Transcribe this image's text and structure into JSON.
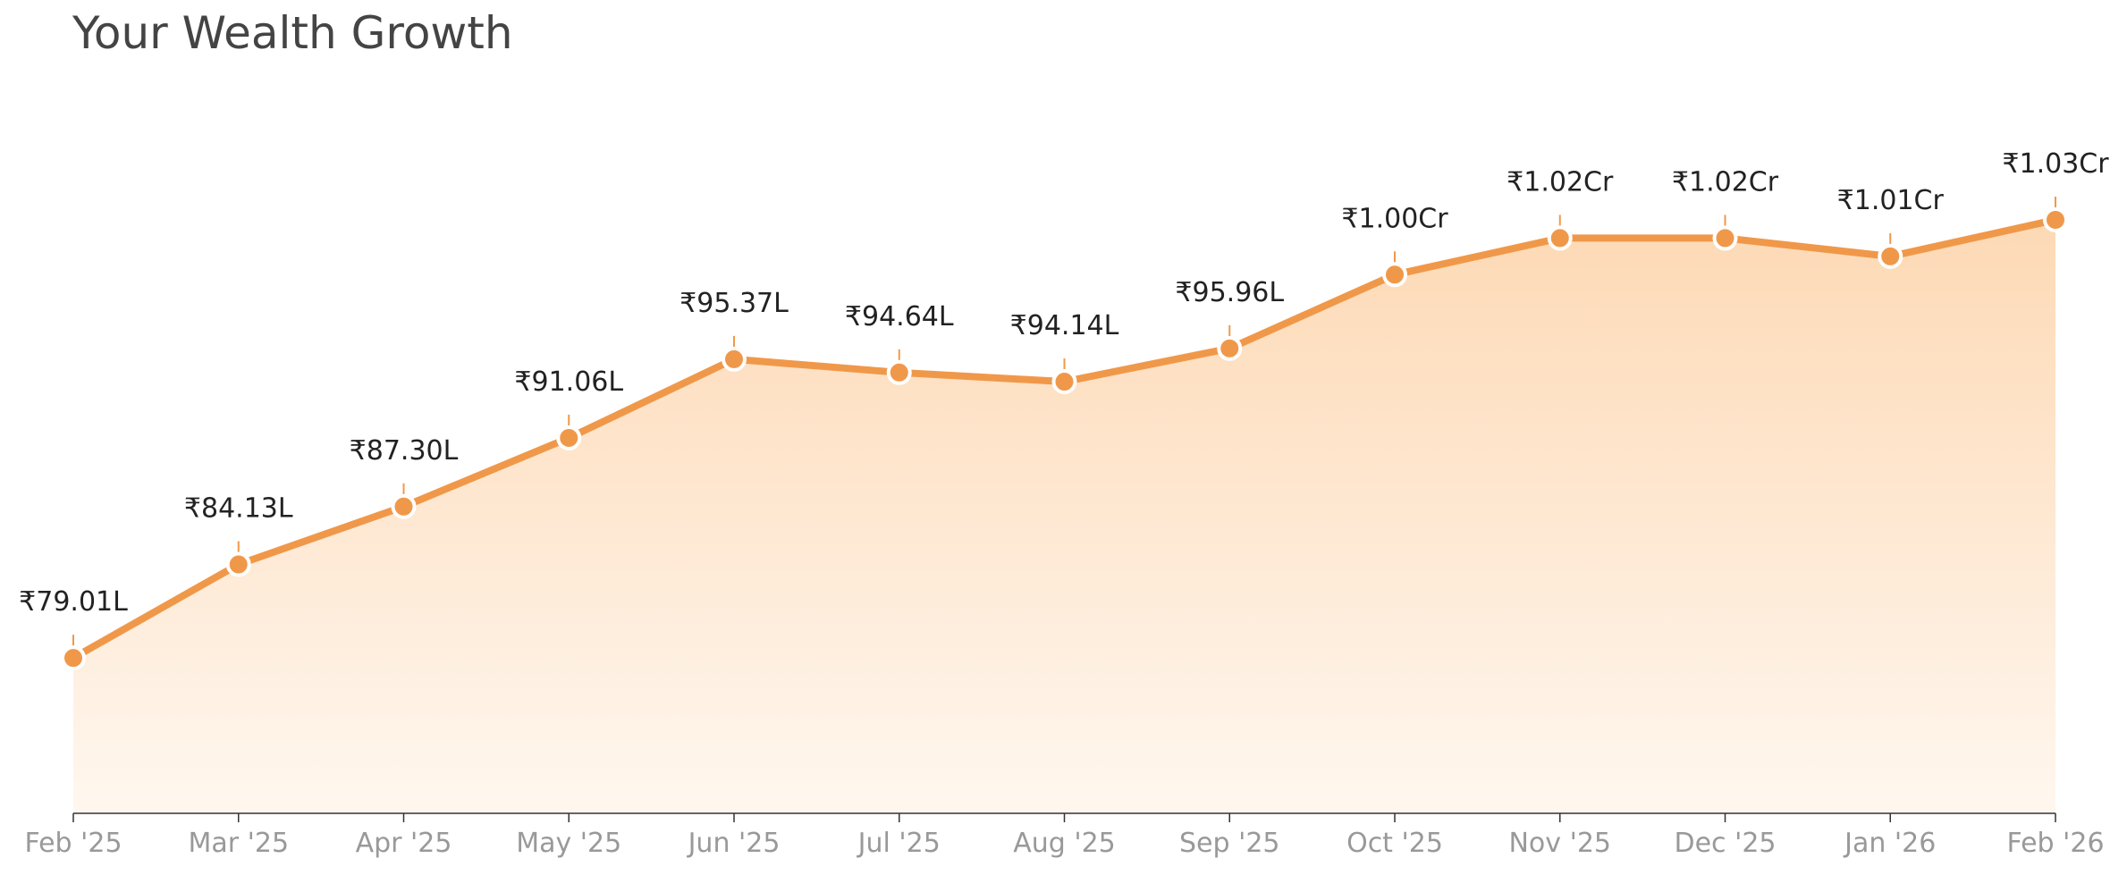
{
  "chart_data": {
    "type": "area",
    "title": "Your Wealth Growth",
    "xlabel": "",
    "ylabel": "",
    "unit": "Lakh INR",
    "categories": [
      "Feb '25",
      "Mar '25",
      "Apr '25",
      "May '25",
      "Jun '25",
      "Jul '25",
      "Aug '25",
      "Sep '25",
      "Oct '25",
      "Nov '25",
      "Dec '25",
      "Jan '26",
      "Feb '26"
    ],
    "values": [
      79.01,
      84.13,
      87.3,
      91.06,
      95.37,
      94.64,
      94.14,
      95.96,
      100.0,
      102.0,
      102.0,
      101.0,
      103.0
    ],
    "data_labels": [
      "₹79.01L",
      "₹84.13L",
      "₹87.30L",
      "₹91.06L",
      "₹95.37L",
      "₹94.64L",
      "₹94.14L",
      "₹95.96L",
      "₹1.00Cr",
      "₹1.02Cr",
      "₹1.02Cr",
      "₹1.01Cr",
      "₹1.03Cr"
    ],
    "ylim": [
      70.5,
      103.0
    ],
    "grid": false,
    "legend": "none",
    "y_axis_visible": false,
    "colors": {
      "line": "#F0984A",
      "marker_fill": "#F0984A",
      "marker_edge": "#FFFFFF",
      "fill_top": "#FDD9B5",
      "fill_bottom": "#FFF7EF",
      "data_label": "#222222",
      "tick_label": "#999999",
      "axis": "#333333",
      "title": "#444444"
    }
  }
}
